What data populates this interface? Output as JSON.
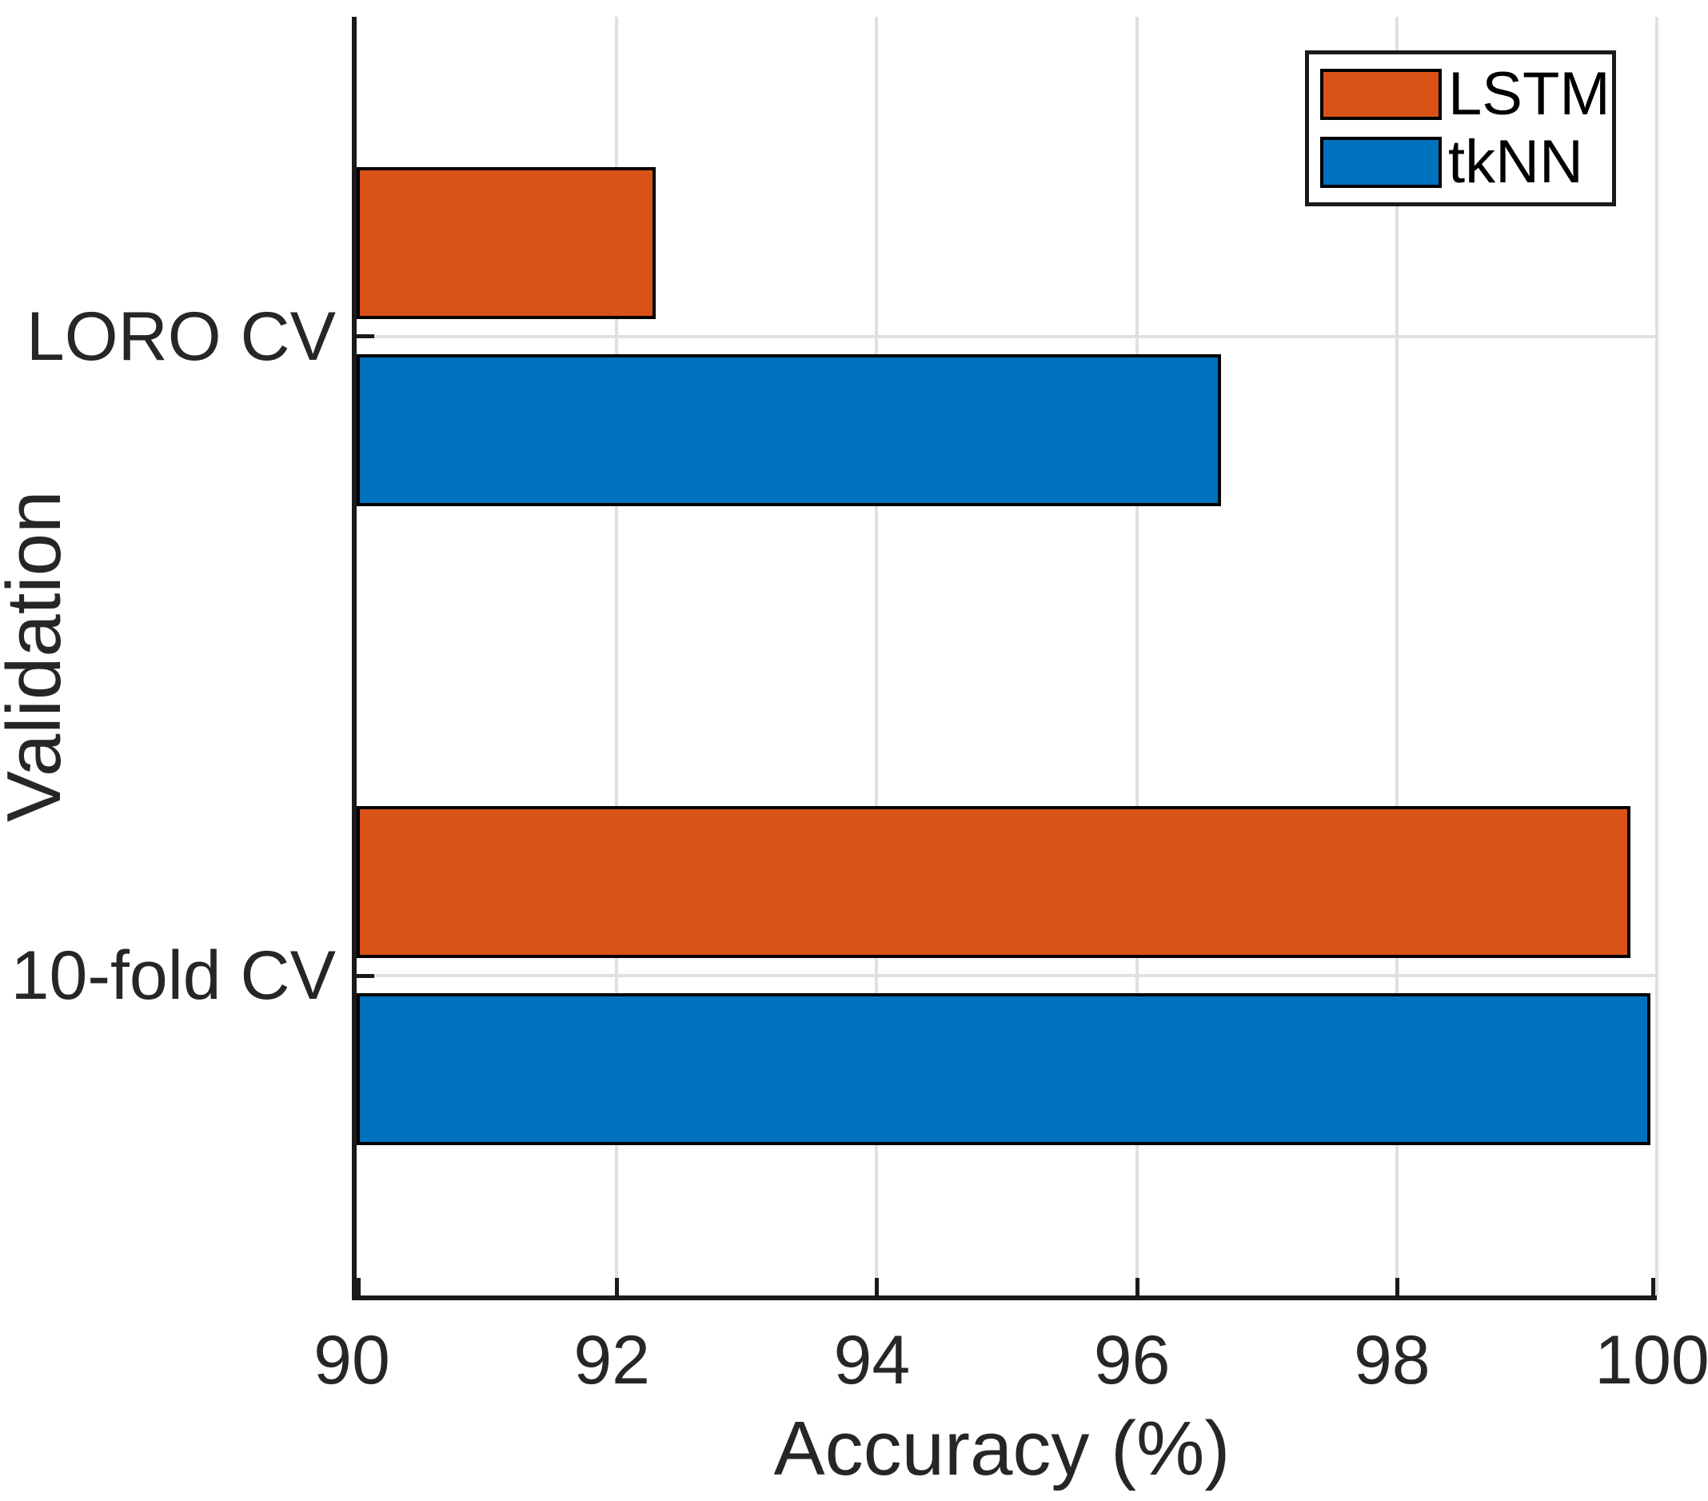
{
  "chart_data": {
    "type": "bar",
    "orientation": "horizontal",
    "title": "",
    "xlabel": "Accuracy (%)",
    "ylabel": "Validation",
    "categories": [
      "LORO CV",
      "10-fold CV"
    ],
    "series": [
      {
        "name": "LSTM",
        "color": "#D95319",
        "values": [
          92.3,
          99.8
        ]
      },
      {
        "name": "tkNN",
        "color": "#0072BD",
        "values": [
          96.65,
          99.95
        ]
      }
    ],
    "xlim": [
      90,
      100
    ],
    "xticks": [
      90,
      92,
      94,
      96,
      98,
      100
    ],
    "grid": true,
    "legend_position": "top-right",
    "colors": {
      "bar_edge": "#000000",
      "gridline": "#E0E0E0",
      "axis": "#1a1a1a",
      "text": "#262626",
      "background": "#FFFFFF"
    }
  }
}
